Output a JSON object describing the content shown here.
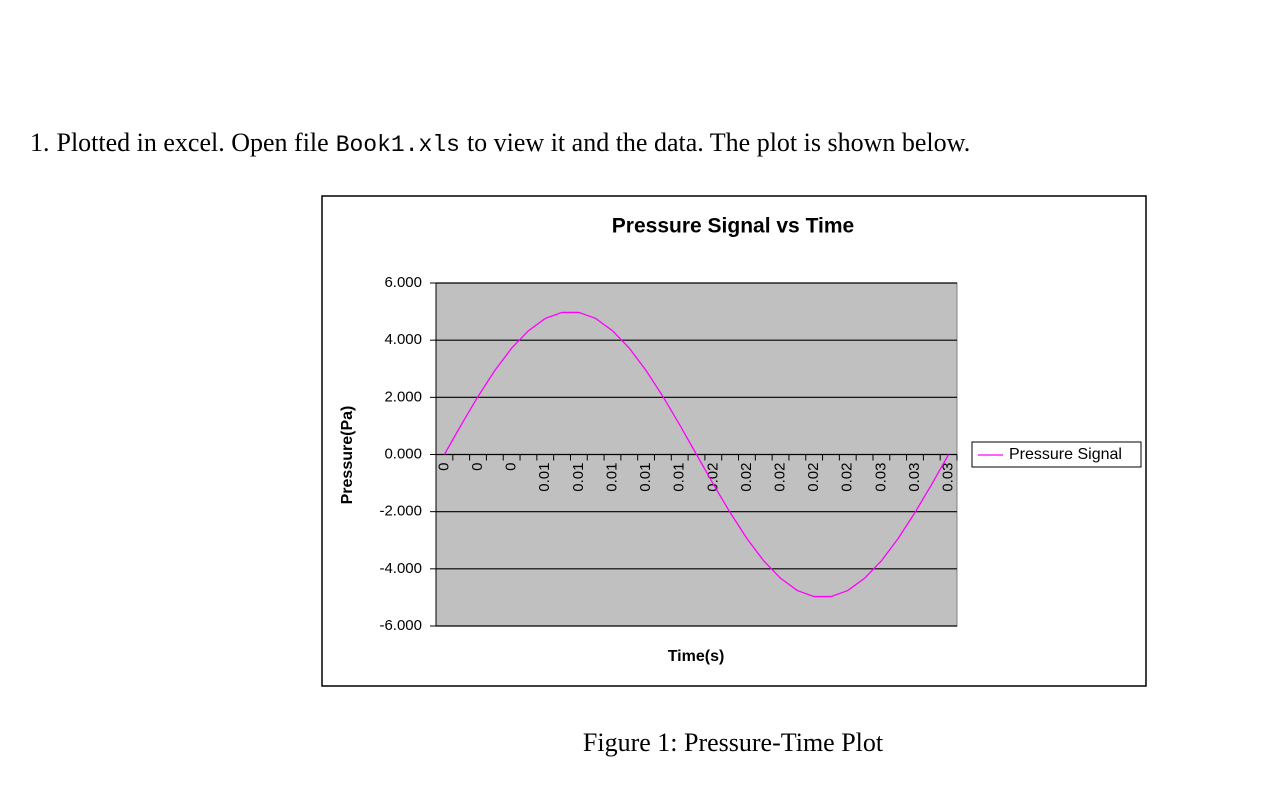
{
  "paragraph": {
    "number": "1.",
    "before": "Plotted in excel. Open file",
    "code": "Book1.xls",
    "after": "to view it and the data. The plot is shown below."
  },
  "chart_data": {
    "type": "line",
    "title": "Pressure Signal vs Time",
    "x_label": "Time(s)",
    "y_label": "Pressure(Pa)",
    "categories": [
      "0",
      null,
      "0",
      null,
      "0",
      null,
      "0.01",
      null,
      "0.01",
      null,
      "0.01",
      null,
      "0.01",
      null,
      "0.01",
      null,
      "0.02",
      null,
      "0.02",
      null,
      "0.02",
      null,
      "0.02",
      null,
      "0.02",
      null,
      "0.03",
      null,
      "0.03",
      null,
      "0.03"
    ],
    "series": [
      {
        "name": "Pressure Signal",
        "color": "#ff00ff",
        "values": [
          0,
          1.04,
          2.03,
          2.94,
          3.72,
          4.33,
          4.76,
          4.97,
          4.97,
          4.76,
          4.33,
          3.72,
          2.94,
          2.03,
          1.04,
          0,
          -1.04,
          -2.03,
          -2.94,
          -3.72,
          -4.33,
          -4.76,
          -4.97,
          -4.97,
          -4.76,
          -4.33,
          -3.72,
          -2.94,
          -2.03,
          -1.04,
          0
        ]
      }
    ],
    "ylim": [
      -6,
      6
    ],
    "yticks": [
      {
        "value": -6,
        "label": "-6.000"
      },
      {
        "value": -4,
        "label": "-4.000"
      },
      {
        "value": -2,
        "label": "-2.000"
      },
      {
        "value": 0,
        "label": "0.000"
      },
      {
        "value": 2,
        "label": "2.000"
      },
      {
        "value": 4,
        "label": "4.000"
      },
      {
        "value": 6,
        "label": "6.000"
      }
    ],
    "grid": true,
    "legend": "right",
    "plot_background": "#c0c0c0"
  },
  "caption": "Figure 1: Pressure-Time Plot"
}
